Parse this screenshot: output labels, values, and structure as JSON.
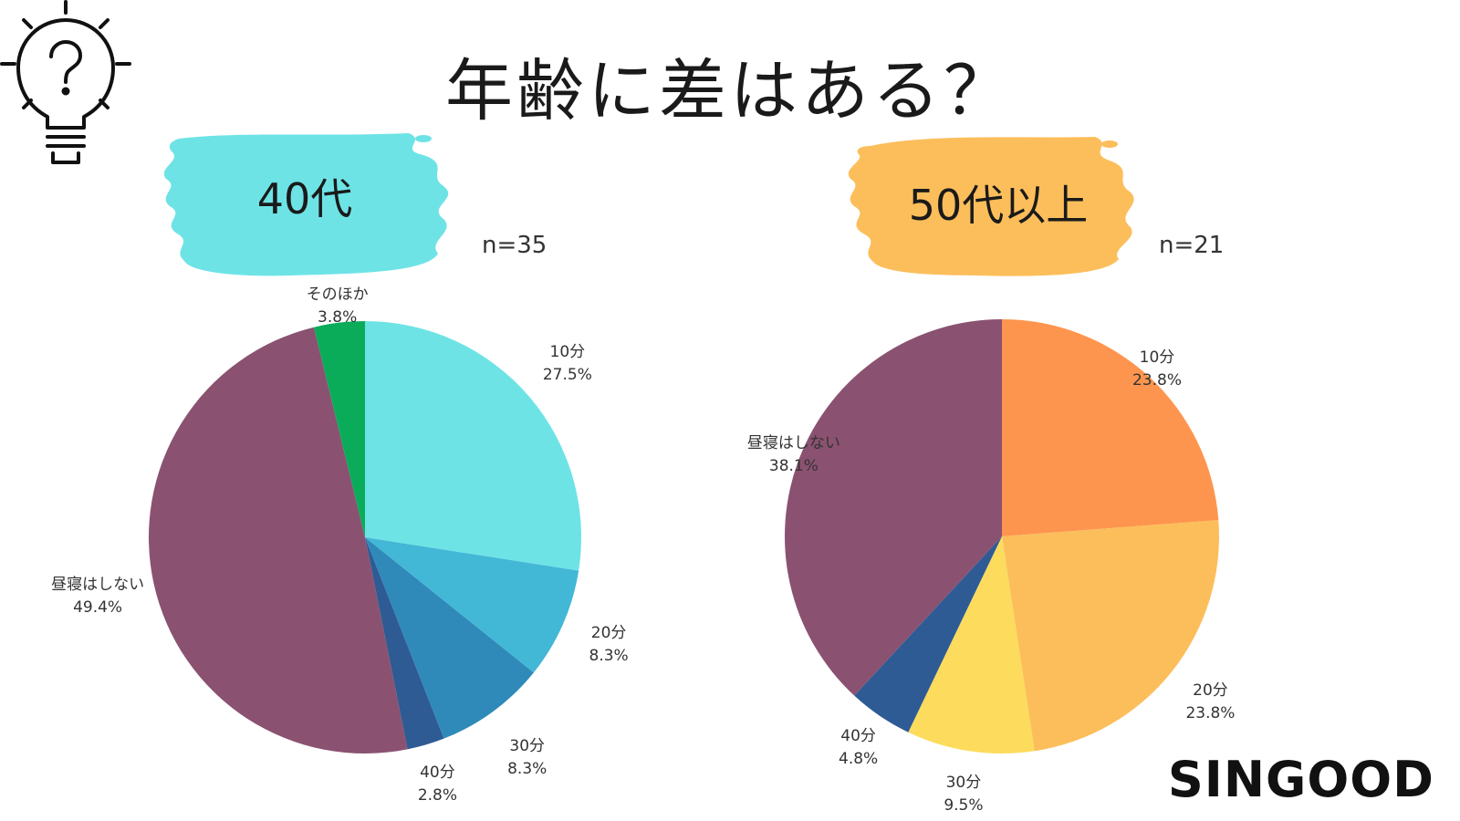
{
  "title": "年齢に差はある？",
  "brand": "SINGOOD",
  "icons": {
    "bulb": "lightbulb-question-icon"
  },
  "chart_data": [
    {
      "type": "pie",
      "group": "40代",
      "n": "n=35",
      "badge_color": "#6ee3e6",
      "slices": [
        {
          "label": "10分",
          "pct": "27.5%",
          "value": 27.5,
          "color": "#6ee3e6"
        },
        {
          "label": "20分",
          "pct": "8.3%",
          "value": 8.3,
          "color": "#43b7d6"
        },
        {
          "label": "30分",
          "pct": "8.3%",
          "value": 8.3,
          "color": "#2f8aba"
        },
        {
          "label": "40分",
          "pct": "2.8%",
          "value": 2.8,
          "color": "#2f5b95"
        },
        {
          "label": "昼寝はしない",
          "pct": "49.4%",
          "value": 49.4,
          "color": "#8a5270"
        },
        {
          "label": "そのほか",
          "pct": "3.8%",
          "value": 3.8,
          "color": "#0aac5a"
        }
      ]
    },
    {
      "type": "pie",
      "group": "50代以上",
      "n": "n=21",
      "badge_color": "#fcbe5b",
      "slices": [
        {
          "label": "10分",
          "pct": "23.8%",
          "value": 23.8,
          "color": "#fe954e"
        },
        {
          "label": "20分",
          "pct": "23.8%",
          "value": 23.8,
          "color": "#fcbe5b"
        },
        {
          "label": "30分",
          "pct": "9.5%",
          "value": 9.5,
          "color": "#fddb5c"
        },
        {
          "label": "40分",
          "pct": "4.8%",
          "value": 4.8,
          "color": "#2f5b95"
        },
        {
          "label": "昼寝はしない",
          "pct": "38.1%",
          "value": 38.1,
          "color": "#8a5270"
        }
      ]
    }
  ]
}
